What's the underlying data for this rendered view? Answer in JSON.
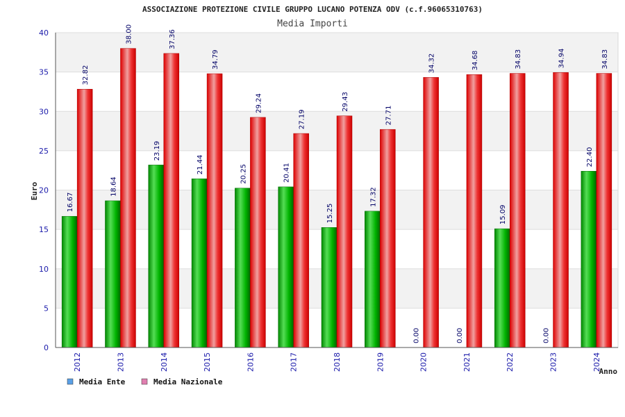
{
  "chart_data": {
    "type": "bar",
    "title": "ASSOCIAZIONE PROTEZIONE CIVILE GRUPPO LUCANO POTENZA ODV (c.f.96065310763)",
    "subtitle": "Media Importi",
    "ylabel": "Euro",
    "xlabel": "Anno",
    "ylim": [
      0,
      40
    ],
    "yticks": [
      "0",
      "5",
      "10",
      "15",
      "20",
      "25",
      "30",
      "35",
      "40"
    ],
    "grid": true,
    "legend_position": "bottom-left",
    "categories": [
      "2012",
      "2013",
      "2014",
      "2015",
      "2016",
      "2017",
      "2018",
      "2019",
      "2020",
      "2021",
      "2022",
      "2023",
      "2024"
    ],
    "series": [
      {
        "name": "Media Ente",
        "color": "#00aa00",
        "legend_color": "#5aa0e6",
        "values": [
          16.67,
          18.64,
          23.19,
          21.44,
          20.25,
          20.41,
          15.25,
          17.32,
          0.0,
          0.0,
          15.09,
          0.0,
          22.4
        ],
        "labels": [
          "16.67",
          "18.64",
          "23.19",
          "21.44",
          "20.25",
          "20.41",
          "15.25",
          "17.32",
          "0.00",
          "0.00",
          "15.09",
          "0.00",
          "22.40"
        ]
      },
      {
        "name": "Media Nazionale",
        "color": "#ee0000",
        "legend_color": "#e07fb0",
        "values": [
          32.82,
          38.0,
          37.36,
          34.79,
          29.24,
          27.19,
          29.43,
          27.71,
          34.32,
          34.68,
          34.83,
          34.94,
          34.83
        ],
        "labels": [
          "32.82",
          "38.00",
          "37.36",
          "34.79",
          "29.24",
          "27.19",
          "29.43",
          "27.71",
          "34.32",
          "34.68",
          "34.83",
          "34.94",
          "34.83"
        ]
      }
    ]
  }
}
